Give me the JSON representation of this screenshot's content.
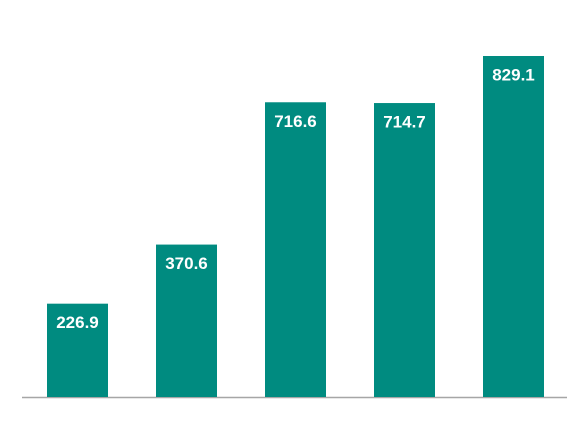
{
  "chart_data": {
    "type": "bar",
    "values": [
      226.9,
      370.6,
      716.6,
      714.7,
      829.1
    ],
    "color": "#008b80"
  }
}
